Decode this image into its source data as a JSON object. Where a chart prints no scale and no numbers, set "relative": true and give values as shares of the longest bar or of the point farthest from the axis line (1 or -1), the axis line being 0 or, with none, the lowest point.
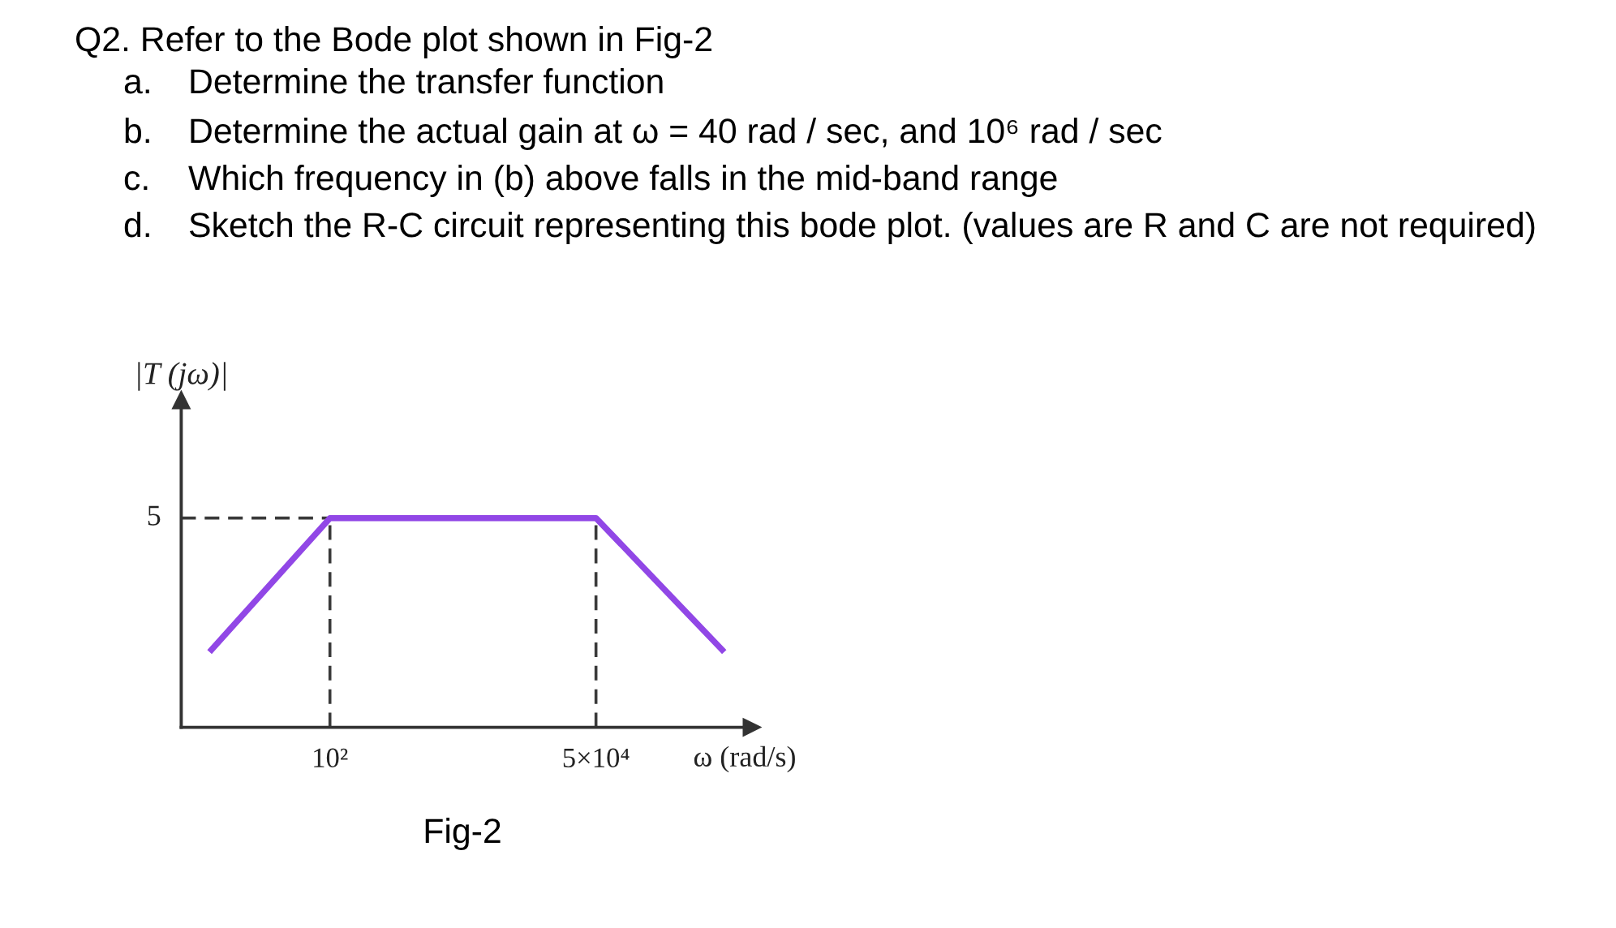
{
  "chart_data": {
    "type": "line",
    "title": "Q2. Refer to the Bode plot shown in Fig-2",
    "annotations": [
      "a. Determine the transfer function",
      "b. Determine the actual gain at ω = 40 rad / sec, and 10⁶ rad / sec",
      "c. Which frequency in (b) above falls in the mid-band range",
      "d. Sketch the R-C circuit representing this bode plot. (values are R and C are not required)",
      "5",
      "Fig-2"
    ],
    "xlabel": "ω (rad/s)",
    "ylabel": "|T (jω)|",
    "x": [
      6,
      100,
      50000,
      1000000
    ],
    "series": [
      {
        "color": "#9147e6",
        "values": [
          0.36,
          1,
          1,
          0.36
        ]
      }
    ],
    "relative": true,
    "log": "x",
    "xlim": [
      3.1,
      1900000
    ],
    "xticks": [
      {
        "value": 100,
        "label": "10²"
      },
      {
        "value": 50000,
        "label": "5×10⁴"
      }
    ],
    "ref_lines": [
      {
        "axis": "y",
        "value": 1,
        "color": "#3a3a3a",
        "line_style": "dashed"
      },
      {
        "axis": "x",
        "value": 100,
        "color": "#3a3a3a",
        "line_style": "dashed"
      },
      {
        "axis": "x",
        "value": 50000,
        "color": "#3a3a3a",
        "line_style": "dashed"
      }
    ]
  }
}
